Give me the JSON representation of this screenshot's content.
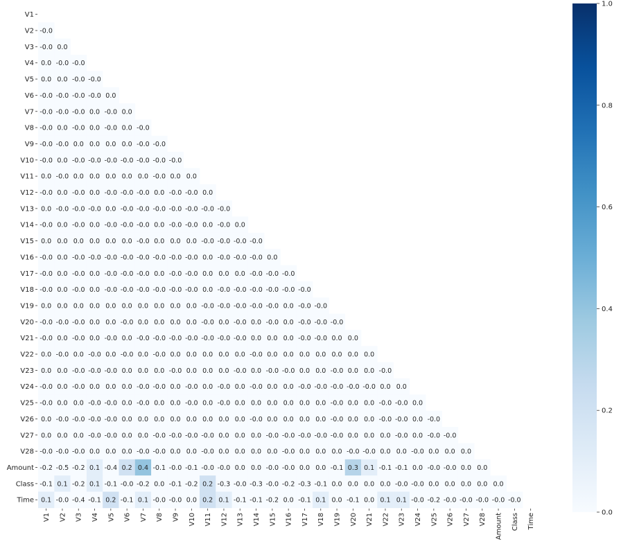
{
  "chart_data": {
    "type": "heatmap",
    "title": "",
    "xlabel": "",
    "ylabel": "",
    "row_labels": [
      "V1",
      "V2",
      "V3",
      "V4",
      "V5",
      "V6",
      "V7",
      "V8",
      "V9",
      "V10",
      "V11",
      "V12",
      "V13",
      "V14",
      "V15",
      "V16",
      "V17",
      "V18",
      "V19",
      "V20",
      "V21",
      "V22",
      "V23",
      "V24",
      "V25",
      "V26",
      "V27",
      "V28",
      "Amount",
      "Class",
      "Time"
    ],
    "col_labels": [
      "V1",
      "V2",
      "V3",
      "V4",
      "V5",
      "V6",
      "V7",
      "V8",
      "V9",
      "V10",
      "V11",
      "V12",
      "V13",
      "V14",
      "V15",
      "V16",
      "V17",
      "V18",
      "V19",
      "V20",
      "V21",
      "V22",
      "V23",
      "V24",
      "V25",
      "V26",
      "V27",
      "V28",
      "Amount",
      "Class",
      "Time"
    ],
    "mask": "upper-triangle-including-diagonal",
    "cells": [
      [],
      [
        "-0.0"
      ],
      [
        "-0.0",
        "0.0"
      ],
      [
        "0.0",
        "-0.0",
        "-0.0"
      ],
      [
        "0.0",
        "0.0",
        "-0.0",
        "-0.0"
      ],
      [
        "-0.0",
        "-0.0",
        "-0.0",
        "-0.0",
        "0.0"
      ],
      [
        "-0.0",
        "-0.0",
        "-0.0",
        "0.0",
        "-0.0",
        "0.0"
      ],
      [
        "-0.0",
        "0.0",
        "-0.0",
        "0.0",
        "-0.0",
        "0.0",
        "-0.0"
      ],
      [
        "-0.0",
        "-0.0",
        "0.0",
        "0.0",
        "0.0",
        "0.0",
        "-0.0",
        "-0.0"
      ],
      [
        "-0.0",
        "0.0",
        "-0.0",
        "-0.0",
        "-0.0",
        "-0.0",
        "-0.0",
        "-0.0",
        "-0.0"
      ],
      [
        "0.0",
        "-0.0",
        "0.0",
        "0.0",
        "0.0",
        "0.0",
        "0.0",
        "-0.0",
        "0.0",
        "0.0"
      ],
      [
        "-0.0",
        "0.0",
        "-0.0",
        "0.0",
        "-0.0",
        "-0.0",
        "-0.0",
        "0.0",
        "-0.0",
        "-0.0",
        "0.0"
      ],
      [
        "0.0",
        "-0.0",
        "-0.0",
        "-0.0",
        "0.0",
        "-0.0",
        "-0.0",
        "-0.0",
        "-0.0",
        "-0.0",
        "-0.0",
        "-0.0"
      ],
      [
        "-0.0",
        "0.0",
        "-0.0",
        "0.0",
        "-0.0",
        "-0.0",
        "-0.0",
        "0.0",
        "-0.0",
        "-0.0",
        "0.0",
        "-0.0",
        "0.0"
      ],
      [
        "0.0",
        "0.0",
        "0.0",
        "0.0",
        "0.0",
        "0.0",
        "-0.0",
        "0.0",
        "0.0",
        "0.0",
        "-0.0",
        "-0.0",
        "-0.0",
        "-0.0"
      ],
      [
        "-0.0",
        "0.0",
        "-0.0",
        "-0.0",
        "-0.0",
        "-0.0",
        "-0.0",
        "-0.0",
        "-0.0",
        "-0.0",
        "0.0",
        "-0.0",
        "-0.0",
        "-0.0",
        "0.0"
      ],
      [
        "-0.0",
        "0.0",
        "-0.0",
        "0.0",
        "-0.0",
        "-0.0",
        "-0.0",
        "0.0",
        "-0.0",
        "-0.0",
        "0.0",
        "0.0",
        "0.0",
        "-0.0",
        "-0.0",
        "-0.0"
      ],
      [
        "-0.0",
        "0.0",
        "-0.0",
        "0.0",
        "-0.0",
        "-0.0",
        "-0.0",
        "-0.0",
        "-0.0",
        "-0.0",
        "0.0",
        "-0.0",
        "-0.0",
        "-0.0",
        "-0.0",
        "-0.0",
        "-0.0"
      ],
      [
        "0.0",
        "0.0",
        "0.0",
        "0.0",
        "0.0",
        "0.0",
        "0.0",
        "0.0",
        "0.0",
        "0.0",
        "-0.0",
        "-0.0",
        "-0.0",
        "-0.0",
        "-0.0",
        "0.0",
        "-0.0",
        "-0.0"
      ],
      [
        "-0.0",
        "-0.0",
        "-0.0",
        "0.0",
        "0.0",
        "-0.0",
        "0.0",
        "0.0",
        "0.0",
        "0.0",
        "-0.0",
        "0.0",
        "-0.0",
        "0.0",
        "-0.0",
        "0.0",
        "-0.0",
        "-0.0",
        "-0.0"
      ],
      [
        "-0.0",
        "0.0",
        "-0.0",
        "0.0",
        "-0.0",
        "0.0",
        "-0.0",
        "-0.0",
        "-0.0",
        "-0.0",
        "-0.0",
        "-0.0",
        "-0.0",
        "0.0",
        "0.0",
        "0.0",
        "-0.0",
        "-0.0",
        "0.0",
        "0.0"
      ],
      [
        "0.0",
        "-0.0",
        "0.0",
        "-0.0",
        "0.0",
        "-0.0",
        "0.0",
        "-0.0",
        "0.0",
        "0.0",
        "0.0",
        "0.0",
        "0.0",
        "-0.0",
        "0.0",
        "0.0",
        "0.0",
        "0.0",
        "0.0",
        "0.0",
        "0.0"
      ],
      [
        "0.0",
        "0.0",
        "-0.0",
        "-0.0",
        "-0.0",
        "0.0",
        "0.0",
        "0.0",
        "-0.0",
        "0.0",
        "0.0",
        "0.0",
        "-0.0",
        "0.0",
        "-0.0",
        "-0.0",
        "0.0",
        "0.0",
        "-0.0",
        "0.0",
        "0.0",
        "-0.0"
      ],
      [
        "-0.0",
        "0.0",
        "-0.0",
        "0.0",
        "0.0",
        "0.0",
        "-0.0",
        "-0.0",
        "0.0",
        "-0.0",
        "0.0",
        "-0.0",
        "0.0",
        "-0.0",
        "0.0",
        "0.0",
        "-0.0",
        "-0.0",
        "-0.0",
        "-0.0",
        "-0.0",
        "0.0",
        "0.0"
      ],
      [
        "-0.0",
        "0.0",
        "0.0",
        "-0.0",
        "-0.0",
        "0.0",
        "-0.0",
        "0.0",
        "0.0",
        "-0.0",
        "0.0",
        "-0.0",
        "0.0",
        "0.0",
        "0.0",
        "0.0",
        "0.0",
        "0.0",
        "-0.0",
        "0.0",
        "0.0",
        "-0.0",
        "-0.0",
        "0.0"
      ],
      [
        "0.0",
        "-0.0",
        "-0.0",
        "-0.0",
        "-0.0",
        "0.0",
        "0.0",
        "0.0",
        "0.0",
        "0.0",
        "0.0",
        "0.0",
        "0.0",
        "-0.0",
        "0.0",
        "0.0",
        "0.0",
        "0.0",
        "-0.0",
        "0.0",
        "0.0",
        "-0.0",
        "-0.0",
        "0.0",
        "-0.0"
      ],
      [
        "0.0",
        "0.0",
        "0.0",
        "-0.0",
        "-0.0",
        "0.0",
        "0.0",
        "-0.0",
        "-0.0",
        "-0.0",
        "-0.0",
        "0.0",
        "0.0",
        "0.0",
        "-0.0",
        "-0.0",
        "-0.0",
        "-0.0",
        "-0.0",
        "0.0",
        "0.0",
        "0.0",
        "-0.0",
        "0.0",
        "-0.0",
        "-0.0"
      ],
      [
        "-0.0",
        "-0.0",
        "-0.0",
        "0.0",
        "0.0",
        "0.0",
        "-0.0",
        "-0.0",
        "0.0",
        "0.0",
        "-0.0",
        "0.0",
        "0.0",
        "0.0",
        "0.0",
        "-0.0",
        "0.0",
        "0.0",
        "0.0",
        "-0.0",
        "-0.0",
        "0.0",
        "0.0",
        "-0.0",
        "0.0",
        "0.0",
        "0.0"
      ],
      [
        "-0.2",
        "-0.5",
        "-0.2",
        "0.1",
        "-0.4",
        "0.2",
        "0.4",
        "-0.1",
        "-0.0",
        "-0.1",
        "-0.0",
        "-0.0",
        "0.0",
        "0.0",
        "-0.0",
        "-0.0",
        "0.0",
        "0.0",
        "-0.1",
        "0.3",
        "0.1",
        "-0.1",
        "-0.1",
        "0.0",
        "-0.0",
        "-0.0",
        "0.0",
        "0.0"
      ],
      [
        "-0.1",
        "0.1",
        "-0.2",
        "0.1",
        "-0.1",
        "-0.0",
        "-0.2",
        "0.0",
        "-0.1",
        "-0.2",
        "0.2",
        "-0.3",
        "-0.0",
        "-0.3",
        "-0.0",
        "-0.2",
        "-0.3",
        "-0.1",
        "0.0",
        "0.0",
        "0.0",
        "0.0",
        "-0.0",
        "-0.0",
        "0.0",
        "0.0",
        "0.0",
        "0.0",
        "0.0"
      ],
      [
        "0.1",
        "-0.0",
        "-0.4",
        "-0.1",
        "0.2",
        "-0.1",
        "0.1",
        "-0.0",
        "-0.0",
        "0.0",
        "0.2",
        "0.1",
        "-0.1",
        "-0.1",
        "-0.2",
        "0.0",
        "-0.1",
        "0.1",
        "0.0",
        "-0.1",
        "0.0",
        "0.1",
        "0.1",
        "-0.0",
        "-0.2",
        "-0.0",
        "-0.0",
        "-0.0",
        "-0.0",
        "-0.0"
      ]
    ],
    "colorbar": {
      "colormap": "Blues",
      "vmin": 0.0,
      "vmax": 1.0,
      "ticks": [
        "0.0",
        "0.2",
        "0.4",
        "0.6",
        "0.8",
        "1.0"
      ]
    }
  }
}
